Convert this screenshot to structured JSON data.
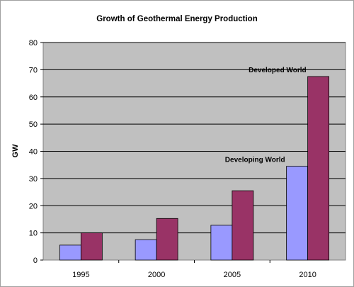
{
  "chart_data": {
    "type": "bar",
    "title": "Growth of Geothermal Energy Production",
    "xlabel": "",
    "ylabel": "GW",
    "categories": [
      "1995",
      "2000",
      "2005",
      "2010"
    ],
    "ylim": [
      0,
      80
    ],
    "yticks": [
      0,
      10,
      20,
      30,
      40,
      50,
      60,
      70,
      80
    ],
    "grid": true,
    "legend": "none",
    "series": [
      {
        "name": "Developing World",
        "values": [
          5.5,
          7.5,
          12.8,
          34.5
        ],
        "color": "#9999ff"
      },
      {
        "name": "Developed World",
        "values": [
          10,
          15.3,
          25.5,
          67.5
        ],
        "color": "#993366"
      }
    ],
    "annotations": [
      {
        "text": "Developed World",
        "series": "Developed World",
        "category": "2010"
      },
      {
        "text": "Developing World",
        "series": "Developing World",
        "category": "2010"
      }
    ],
    "plot_background": "#c0c0c0"
  }
}
